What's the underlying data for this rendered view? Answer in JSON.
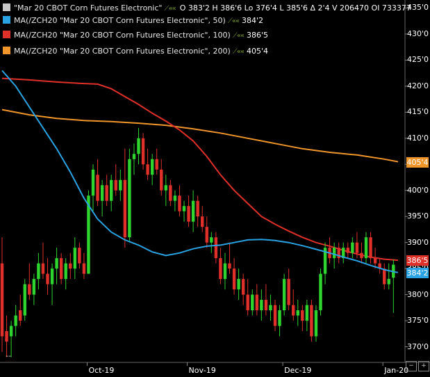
{
  "legend": [
    {
      "name": "\"Mar 20 CBOT Corn Futures Electronic\"",
      "color": "#c8c8c8",
      "icons": "⟋««",
      "ohlc": "O 383'2  H 386'6  Lo 376'4  L 385'6  Δ 2'4  V 206470  OI 733377",
      "value": ""
    },
    {
      "name": "MA(/ZCH20 \"Mar 20 CBOT Corn Futures Electronic\", 50)",
      "color": "#29a3e3",
      "icons": "⟋««",
      "ohlc": "",
      "value": "384'2"
    },
    {
      "name": "MA(/ZCH20 \"Mar 20 CBOT Corn Futures Electronic\", 100)",
      "color": "#e0302a",
      "icons": "⟋««",
      "ohlc": "",
      "value": "386'5"
    },
    {
      "name": "MA(/ZCH20 \"Mar 20 CBOT Corn Futures Electronic\", 200)",
      "color": "#f0962a",
      "icons": "⟋««",
      "ohlc": "",
      "value": "405'4"
    }
  ],
  "y_axis": {
    "ticks": [
      "435'0",
      "430'0",
      "425'0",
      "420'0",
      "415'0",
      "410'0",
      "405'0",
      "400'0",
      "395'0",
      "390'0",
      "385'0",
      "380'0",
      "375'0",
      "370'0"
    ],
    "tick_values": [
      435,
      430,
      425,
      420,
      415,
      410,
      405,
      400,
      395,
      390,
      385,
      380,
      375,
      370
    ]
  },
  "x_axis": {
    "labels": [
      "Oct-19",
      "Nov-19",
      "Dec-19",
      "Jan-20"
    ]
  },
  "footer": {
    "left_label": "--"
  },
  "price_tags": [
    {
      "label": "405'4",
      "value": 405.5,
      "color": "#f0962a"
    },
    {
      "label": "386'5",
      "value": 386.6,
      "color": "#e0302a"
    },
    {
      "label": "384'2",
      "value": 384.25,
      "color": "#29a3e3"
    }
  ],
  "colors": {
    "up": "#2fd52f",
    "down": "#e0302a",
    "ma50": "#29a3e3",
    "ma100": "#e0302a",
    "ma200": "#f0962a",
    "grid": "#3a3a3a"
  },
  "chart_data": {
    "type": "candlestick",
    "symbol": "/ZCH20",
    "title": "Mar 20 CBOT Corn Futures Electronic",
    "ylim": [
      367,
      436
    ],
    "month_labels": [
      {
        "label": "Oct-19",
        "bar_index": 19
      },
      {
        "label": "Nov-19",
        "bar_index": 41
      },
      {
        "label": "Dec-19",
        "bar_index": 62
      },
      {
        "label": "Jan-20",
        "bar_index": 84
      }
    ],
    "candles": [
      {
        "o": 386,
        "h": 391,
        "l": 369,
        "c": 372
      },
      {
        "o": 373,
        "h": 376,
        "l": 368,
        "c": 371
      },
      {
        "o": 372,
        "h": 375,
        "l": 368,
        "c": 374
      },
      {
        "o": 374,
        "h": 378,
        "l": 372,
        "c": 376
      },
      {
        "o": 377,
        "h": 380,
        "l": 374,
        "c": 375
      },
      {
        "o": 376,
        "h": 383,
        "l": 375,
        "c": 382
      },
      {
        "o": 382,
        "h": 386,
        "l": 379,
        "c": 380
      },
      {
        "o": 380,
        "h": 384,
        "l": 378,
        "c": 383
      },
      {
        "o": 383,
        "h": 388,
        "l": 381,
        "c": 386
      },
      {
        "o": 386,
        "h": 390,
        "l": 383,
        "c": 384
      },
      {
        "o": 384,
        "h": 387,
        "l": 380,
        "c": 382
      },
      {
        "o": 382,
        "h": 386,
        "l": 378,
        "c": 385
      },
      {
        "o": 385,
        "h": 389,
        "l": 382,
        "c": 387
      },
      {
        "o": 387,
        "h": 388,
        "l": 382,
        "c": 383
      },
      {
        "o": 383,
        "h": 387,
        "l": 381,
        "c": 386
      },
      {
        "o": 386,
        "h": 388,
        "l": 383,
        "c": 385
      },
      {
        "o": 385,
        "h": 391,
        "l": 383,
        "c": 389
      },
      {
        "o": 389,
        "h": 390,
        "l": 385,
        "c": 386
      },
      {
        "o": 386,
        "h": 388,
        "l": 383,
        "c": 384
      },
      {
        "o": 384,
        "h": 400,
        "l": 384,
        "c": 399
      },
      {
        "o": 399,
        "h": 405,
        "l": 396,
        "c": 404
      },
      {
        "o": 403,
        "h": 406,
        "l": 397,
        "c": 398
      },
      {
        "o": 398,
        "h": 402,
        "l": 395,
        "c": 401
      },
      {
        "o": 401,
        "h": 403,
        "l": 397,
        "c": 398
      },
      {
        "o": 398,
        "h": 403,
        "l": 396,
        "c": 402
      },
      {
        "o": 402,
        "h": 405,
        "l": 399,
        "c": 400
      },
      {
        "o": 400,
        "h": 404,
        "l": 398,
        "c": 402
      },
      {
        "o": 402,
        "h": 408,
        "l": 389,
        "c": 391
      },
      {
        "o": 391,
        "h": 408,
        "l": 390,
        "c": 406
      },
      {
        "o": 406,
        "h": 409,
        "l": 403,
        "c": 407
      },
      {
        "o": 407,
        "h": 412,
        "l": 405,
        "c": 410
      },
      {
        "o": 410,
        "h": 411,
        "l": 404,
        "c": 405
      },
      {
        "o": 405,
        "h": 408,
        "l": 402,
        "c": 403
      },
      {
        "o": 403,
        "h": 407,
        "l": 401,
        "c": 406
      },
      {
        "o": 406,
        "h": 408,
        "l": 403,
        "c": 404
      },
      {
        "o": 404,
        "h": 406,
        "l": 399,
        "c": 400
      },
      {
        "o": 400,
        "h": 403,
        "l": 397,
        "c": 401
      },
      {
        "o": 401,
        "h": 402,
        "l": 397,
        "c": 398
      },
      {
        "o": 398,
        "h": 400,
        "l": 396,
        "c": 399
      },
      {
        "o": 399,
        "h": 401,
        "l": 395,
        "c": 396
      },
      {
        "o": 396,
        "h": 398,
        "l": 394,
        "c": 397
      },
      {
        "o": 397,
        "h": 399,
        "l": 393,
        "c": 394
      },
      {
        "o": 394,
        "h": 400,
        "l": 392,
        "c": 398
      },
      {
        "o": 398,
        "h": 399,
        "l": 393,
        "c": 395
      },
      {
        "o": 395,
        "h": 397,
        "l": 392,
        "c": 393
      },
      {
        "o": 393,
        "h": 395,
        "l": 389,
        "c": 390
      },
      {
        "o": 390,
        "h": 392,
        "l": 388,
        "c": 391
      },
      {
        "o": 391,
        "h": 392,
        "l": 386,
        "c": 387
      },
      {
        "o": 387,
        "h": 389,
        "l": 382,
        "c": 383
      },
      {
        "o": 383,
        "h": 388,
        "l": 381,
        "c": 386
      },
      {
        "o": 386,
        "h": 390,
        "l": 384,
        "c": 385
      },
      {
        "o": 385,
        "h": 387,
        "l": 380,
        "c": 381
      },
      {
        "o": 381,
        "h": 385,
        "l": 379,
        "c": 383
      },
      {
        "o": 383,
        "h": 384,
        "l": 378,
        "c": 380
      },
      {
        "o": 380,
        "h": 383,
        "l": 376,
        "c": 377
      },
      {
        "o": 377,
        "h": 381,
        "l": 376,
        "c": 380
      },
      {
        "o": 380,
        "h": 382,
        "l": 376,
        "c": 377
      },
      {
        "o": 377,
        "h": 381,
        "l": 375,
        "c": 379
      },
      {
        "o": 379,
        "h": 382,
        "l": 376,
        "c": 377
      },
      {
        "o": 377,
        "h": 380,
        "l": 375,
        "c": 378
      },
      {
        "o": 378,
        "h": 379,
        "l": 373,
        "c": 374
      },
      {
        "o": 374,
        "h": 378,
        "l": 372,
        "c": 377
      },
      {
        "o": 377,
        "h": 384,
        "l": 376,
        "c": 383
      },
      {
        "o": 383,
        "h": 385,
        "l": 377,
        "c": 378
      },
      {
        "o": 378,
        "h": 381,
        "l": 375,
        "c": 376
      },
      {
        "o": 376,
        "h": 379,
        "l": 374,
        "c": 377
      },
      {
        "o": 377,
        "h": 378,
        "l": 373,
        "c": 375
      },
      {
        "o": 375,
        "h": 379,
        "l": 373,
        "c": 378
      },
      {
        "o": 378,
        "h": 379,
        "l": 371,
        "c": 372
      },
      {
        "o": 372,
        "h": 378,
        "l": 371,
        "c": 377
      },
      {
        "o": 377,
        "h": 385,
        "l": 376,
        "c": 384
      },
      {
        "o": 384,
        "h": 390,
        "l": 382,
        "c": 389
      },
      {
        "o": 389,
        "h": 391,
        "l": 386,
        "c": 387
      },
      {
        "o": 387,
        "h": 390,
        "l": 385,
        "c": 389
      },
      {
        "o": 389,
        "h": 390,
        "l": 386,
        "c": 387
      },
      {
        "o": 387,
        "h": 390,
        "l": 386,
        "c": 389
      },
      {
        "o": 389,
        "h": 390,
        "l": 387,
        "c": 388
      },
      {
        "o": 388,
        "h": 391,
        "l": 387,
        "c": 390
      },
      {
        "o": 390,
        "h": 392,
        "l": 387,
        "c": 388
      },
      {
        "o": 388,
        "h": 390,
        "l": 386,
        "c": 387
      },
      {
        "o": 387,
        "h": 392,
        "l": 386,
        "c": 391
      },
      {
        "o": 391,
        "h": 392,
        "l": 386,
        "c": 387
      },
      {
        "o": 387,
        "h": 389,
        "l": 385,
        "c": 386
      },
      {
        "o": 386,
        "h": 387,
        "l": 384,
        "c": 385
      },
      {
        "o": 385,
        "h": 386,
        "l": 381,
        "c": 382
      },
      {
        "o": 382,
        "h": 386,
        "l": 381,
        "c": 383
      },
      {
        "o": 383.25,
        "h": 386.75,
        "l": 376.5,
        "c": 385.75
      }
    ],
    "series": [
      {
        "name": "MA(/ZCH20 \"Mar 20 CBOT Corn Futures Electronic\", 50)",
        "period": 50,
        "last": "384'2",
        "x": [
          0,
          3,
          6,
          9,
          12,
          15,
          18,
          21,
          24,
          27,
          30,
          33,
          36,
          39,
          42,
          45,
          48,
          51,
          54,
          57,
          60,
          63,
          66,
          69,
          72,
          75,
          78,
          81,
          84,
          86,
          87
        ],
        "values": [
          423,
          420,
          416,
          412,
          408,
          403.5,
          398.5,
          394.5,
          392,
          390.5,
          389.5,
          388.2,
          387.5,
          388,
          388.8,
          389.3,
          389.5,
          390,
          390.5,
          390.6,
          390.4,
          390,
          389.4,
          388.7,
          388,
          387.2,
          386.5,
          385.6,
          384.8,
          384.4,
          384.25
        ]
      },
      {
        "name": "MA(/ZCH20 \"Mar 20 CBOT Corn Futures Electronic\", 100)",
        "period": 100,
        "last": "386'5",
        "x": [
          0,
          6,
          12,
          18,
          21,
          24,
          27,
          30,
          33,
          36,
          39,
          42,
          45,
          48,
          51,
          54,
          57,
          60,
          63,
          66,
          69,
          72,
          75,
          78,
          81,
          84,
          87
        ],
        "values": [
          421.5,
          421.2,
          420.8,
          420.5,
          420.4,
          419.5,
          418,
          416.5,
          414.8,
          413.3,
          411.6,
          409.5,
          406.5,
          403,
          400,
          397.5,
          395,
          393.5,
          392.2,
          391,
          390,
          389.3,
          388.5,
          387.8,
          387.2,
          386.8,
          386.6
        ]
      },
      {
        "name": "MA(/ZCH20 \"Mar 20 CBOT Corn Futures Electronic\", 200)",
        "period": 200,
        "last": "405'4",
        "x": [
          0,
          6,
          12,
          18,
          24,
          30,
          36,
          42,
          48,
          54,
          60,
          66,
          72,
          78,
          84,
          87
        ],
        "values": [
          415.5,
          414.5,
          413.8,
          413.4,
          413.2,
          412.9,
          412.5,
          411.8,
          411,
          410,
          409,
          408,
          407.3,
          406.8,
          406,
          405.5
        ]
      }
    ]
  }
}
